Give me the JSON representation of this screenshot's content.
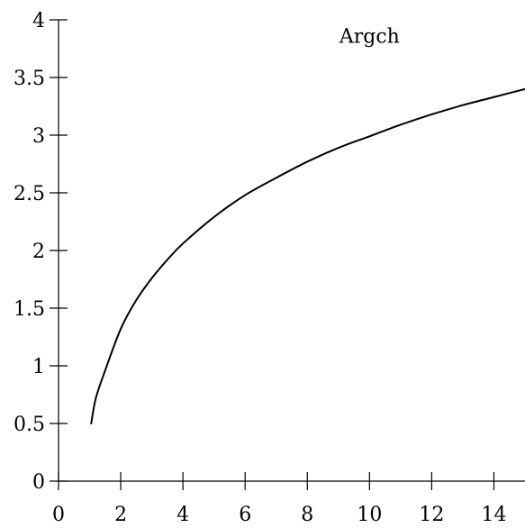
{
  "chart_data": {
    "type": "line",
    "title": "",
    "xlabel": "",
    "ylabel": "",
    "xlim": [
      0,
      15
    ],
    "ylim": [
      0,
      4
    ],
    "x_ticks": [
      0,
      2,
      4,
      6,
      8,
      10,
      12,
      14
    ],
    "x_tick_labels": [
      "0",
      "2",
      "4",
      "6",
      "8",
      "10",
      "12",
      "14"
    ],
    "y_ticks": [
      0,
      0.5,
      1,
      1.5,
      2,
      2.5,
      3,
      3.5,
      4
    ],
    "y_tick_labels": [
      "0",
      "0.5",
      "1",
      "1.5",
      "2",
      "2.5",
      "3",
      "3.5",
      "4"
    ],
    "grid": false,
    "legend": "none",
    "annotations": [
      {
        "text": "Argch",
        "x": 10,
        "y": 3.8
      }
    ],
    "series": [
      {
        "color": "#000000",
        "x": [
          1.05,
          1.2,
          1.5,
          2,
          2.5,
          3,
          3.5,
          4,
          5,
          6,
          7,
          8,
          9,
          10,
          11,
          12,
          13,
          14,
          15
        ],
        "y": [
          0.5,
          0.72,
          0.96,
          1.32,
          1.57,
          1.76,
          1.92,
          2.06,
          2.29,
          2.48,
          2.63,
          2.77,
          2.89,
          2.99,
          3.09,
          3.18,
          3.26,
          3.33,
          3.4
        ]
      }
    ]
  }
}
